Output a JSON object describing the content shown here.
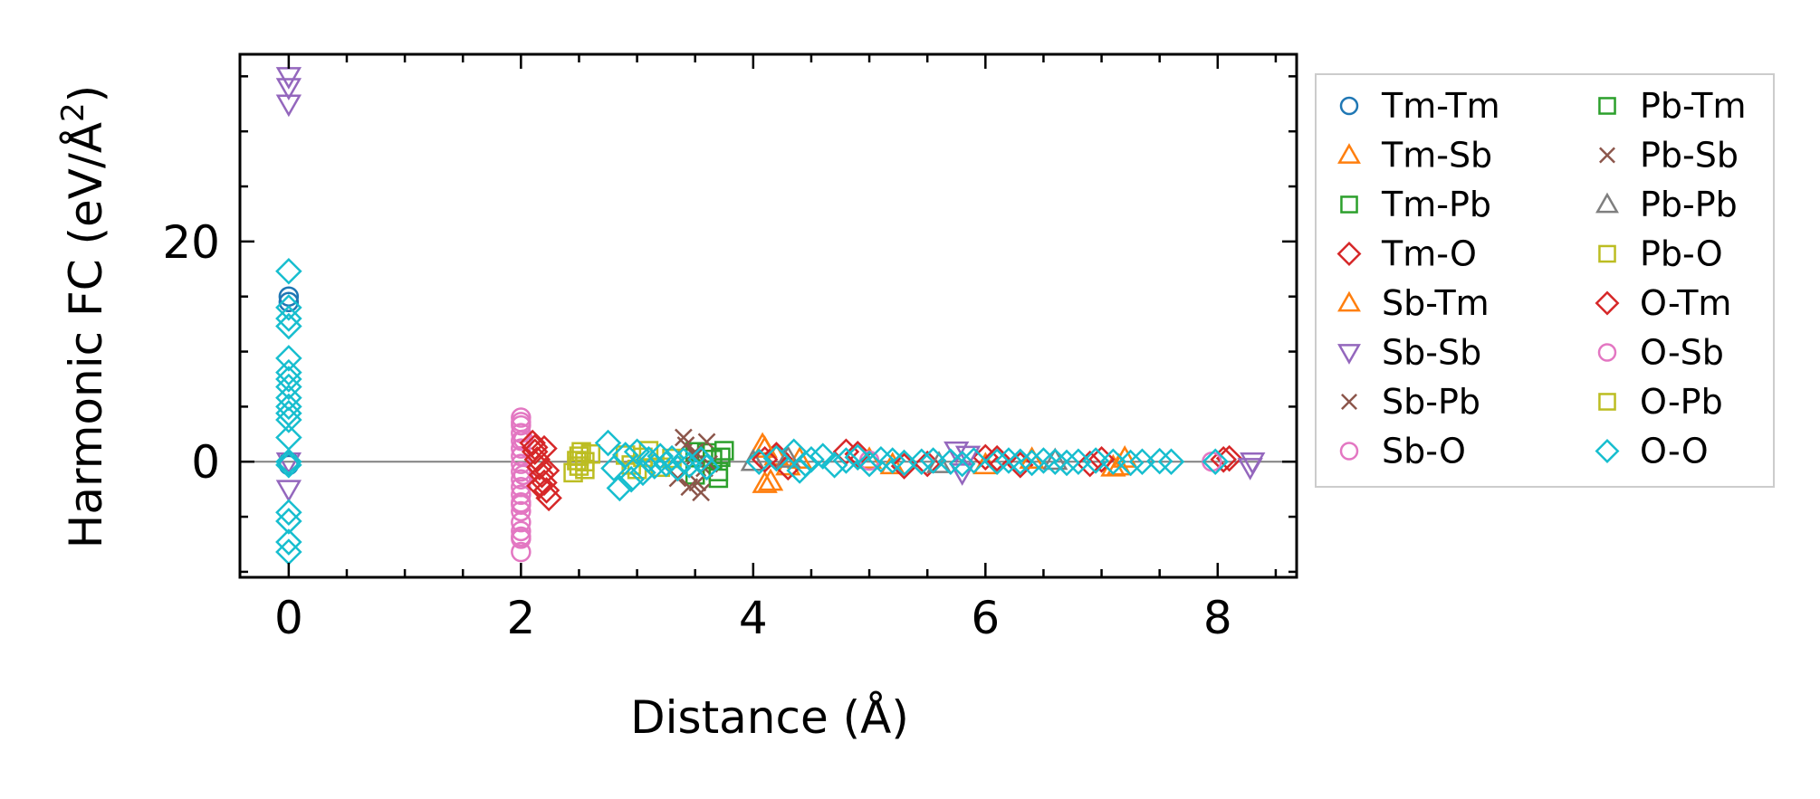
{
  "chart_data": {
    "type": "scatter",
    "xlabel": "Distance (Å)",
    "ylabel": "Harmonic FC (eV/Å²)",
    "ylabel_main": "Harmonic FC (eV/Å",
    "ylabel_sup": "2",
    "ylabel_close": ")",
    "xlim": [
      -0.42,
      8.68
    ],
    "ylim": [
      -10.5,
      37
    ],
    "xticks": [
      0,
      2,
      4,
      6,
      8
    ],
    "xtick_labels": [
      "0",
      "2",
      "4",
      "6",
      "8"
    ],
    "yticks": [
      0,
      20
    ],
    "ytick_labels": [
      "0",
      "20"
    ],
    "x_minor_step": 0.5,
    "y_minor_step": 5,
    "hline": {
      "y": 0,
      "color": "#808080"
    },
    "legend_position": "outside right",
    "series": [
      {
        "name": "Tm-Tm",
        "marker": "circle",
        "color": "#1f77b4",
        "fill": false,
        "points": [
          [
            0,
            15
          ],
          [
            0,
            14.5
          ],
          [
            0,
            0
          ],
          [
            0,
            -0.3
          ]
        ]
      },
      {
        "name": "Tm-Sb",
        "marker": "triangle-up",
        "color": "#ff7f0e",
        "fill": false,
        "points": [
          [
            4.08,
            1.5
          ],
          [
            4.1,
            -2
          ],
          [
            4.2,
            0.5
          ],
          [
            4.3,
            -0.4
          ],
          [
            5.0,
            0.2
          ],
          [
            6.0,
            -0.3
          ],
          [
            7.1,
            -0.5
          ],
          [
            7.2,
            0.3
          ]
        ]
      },
      {
        "name": "Tm-Pb",
        "marker": "square",
        "color": "#2ca02c",
        "fill": false,
        "points": [
          [
            3.5,
            -1.2
          ],
          [
            3.6,
            0.8
          ],
          [
            3.7,
            -1.5
          ],
          [
            3.75,
            1.0
          ],
          [
            3.65,
            0.2
          ]
        ]
      },
      {
        "name": "Tm-O",
        "marker": "diamond",
        "color": "#d62728",
        "fill": false,
        "points": [
          [
            2.2,
            1.2
          ],
          [
            2.22,
            -0.8
          ],
          [
            4.2,
            0.6
          ],
          [
            4.3,
            -0.5
          ],
          [
            4.9,
            0.7
          ],
          [
            5.5,
            -0.2
          ],
          [
            6.0,
            0.4
          ],
          [
            6.3,
            -0.3
          ],
          [
            7.0,
            0.2
          ],
          [
            8.1,
            0.3
          ]
        ]
      },
      {
        "name": "Sb-Tm",
        "marker": "triangle-up",
        "color": "#ff7f0e",
        "fill": false,
        "points": [
          [
            4.1,
            1.2
          ],
          [
            4.15,
            -1.8
          ],
          [
            4.4,
            0.2
          ],
          [
            5.2,
            -0.3
          ],
          [
            6.4,
            0.2
          ],
          [
            7.15,
            -0.4
          ]
        ]
      },
      {
        "name": "Sb-Sb",
        "marker": "triangle-down",
        "color": "#9467bd",
        "fill": false,
        "points": [
          [
            0,
            35
          ],
          [
            0,
            34
          ],
          [
            0,
            32.5
          ],
          [
            0,
            -2.5
          ],
          [
            0,
            0
          ],
          [
            5.75,
            1
          ],
          [
            5.85,
            0.6
          ],
          [
            5.8,
            -1.0
          ],
          [
            8.3,
            0
          ],
          [
            8.28,
            -0.5
          ]
        ]
      },
      {
        "name": "Sb-Pb",
        "marker": "x",
        "color": "#8c564b",
        "fill": false,
        "points": [
          [
            3.4,
            2.2
          ],
          [
            3.45,
            -2.3
          ],
          [
            3.55,
            -2.8
          ],
          [
            3.6,
            1.8
          ],
          [
            3.5,
            0.5
          ],
          [
            3.58,
            -0.6
          ],
          [
            3.35,
            -1.5
          ]
        ]
      },
      {
        "name": "Sb-O",
        "marker": "circle",
        "color": "#e377c2",
        "fill": false,
        "points": [
          [
            2.0,
            4
          ],
          [
            2.0,
            3.3
          ],
          [
            2.0,
            2.6
          ],
          [
            2.0,
            1.9
          ],
          [
            2.0,
            1.2
          ],
          [
            2.0,
            0.5
          ],
          [
            2.0,
            -0.2
          ],
          [
            2.0,
            -0.9
          ],
          [
            2.0,
            -1.6
          ],
          [
            2.0,
            -2.3
          ],
          [
            2.0,
            -3.0
          ],
          [
            2.0,
            -3.7
          ],
          [
            2.0,
            -4.5
          ],
          [
            2.0,
            -5.5
          ],
          [
            2.0,
            -6.3
          ],
          [
            2.0,
            -7.0
          ],
          [
            2.0,
            -8.2
          ],
          [
            2.02,
            2.0
          ],
          [
            2.02,
            -1.2
          ]
        ]
      },
      {
        "name": "Pb-Tm",
        "marker": "square",
        "color": "#2ca02c",
        "fill": false,
        "points": [
          [
            3.5,
            0.9
          ],
          [
            3.7,
            -0.9
          ],
          [
            3.72,
            0.4
          ]
        ]
      },
      {
        "name": "Pb-Sb",
        "marker": "x",
        "color": "#8c564b",
        "fill": false,
        "points": [
          [
            3.42,
            1.5
          ],
          [
            3.52,
            -1.9
          ],
          [
            3.62,
            -0.2
          ],
          [
            3.5,
            0.9
          ]
        ]
      },
      {
        "name": "Pb-Pb",
        "marker": "triangle-up",
        "color": "#7f7f7f",
        "fill": false,
        "points": [
          [
            4.0,
            0
          ],
          [
            4.3,
            0.3
          ],
          [
            5.6,
            -0.2
          ],
          [
            6.6,
            0.1
          ]
        ]
      },
      {
        "name": "Pb-O",
        "marker": "square",
        "color": "#bcbd22",
        "fill": false,
        "points": [
          [
            2.45,
            -1.0
          ],
          [
            2.5,
            0.5
          ],
          [
            2.5,
            -0.4
          ],
          [
            2.55,
            0
          ],
          [
            2.6,
            0.7
          ],
          [
            2.48,
            0.1
          ],
          [
            2.9,
            0.6
          ],
          [
            3.0,
            -0.7
          ],
          [
            3.1,
            1.0
          ],
          [
            3.2,
            -0.5
          ],
          [
            3.3,
            0.3
          ]
        ]
      },
      {
        "name": "O-Tm",
        "marker": "diamond",
        "color": "#d62728",
        "fill": false,
        "points": [
          [
            2.1,
            1.7
          ],
          [
            2.12,
            0.9
          ],
          [
            2.14,
            0.2
          ],
          [
            2.16,
            -0.5
          ],
          [
            2.18,
            -1.2
          ],
          [
            2.2,
            -1.9
          ],
          [
            2.22,
            -2.6
          ],
          [
            2.24,
            -3.3
          ],
          [
            2.12,
            1.3
          ],
          [
            2.16,
            -2.2
          ],
          [
            4.1,
            0.2
          ],
          [
            4.8,
            0.9
          ],
          [
            5.3,
            -0.4
          ],
          [
            6.1,
            0.3
          ],
          [
            6.9,
            -0.2
          ],
          [
            8.05,
            0.2
          ]
        ]
      },
      {
        "name": "O-Sb",
        "marker": "circle",
        "color": "#e377c2",
        "fill": false,
        "points": [
          [
            2.0,
            3.6
          ],
          [
            2.0,
            -3.9
          ],
          [
            2.0,
            -6.8
          ],
          [
            5.0,
            0.1
          ],
          [
            7.95,
            0
          ]
        ]
      },
      {
        "name": "O-Pb",
        "marker": "square",
        "color": "#bcbd22",
        "fill": false,
        "points": [
          [
            2.55,
            -0.7
          ],
          [
            2.52,
            0.9
          ],
          [
            2.95,
            -0.3
          ],
          [
            3.05,
            0.4
          ]
        ]
      },
      {
        "name": "O-O",
        "marker": "diamond",
        "color": "#17becf",
        "fill": false,
        "points": [
          [
            0,
            17.3
          ],
          [
            0,
            14
          ],
          [
            0,
            13
          ],
          [
            0,
            12.3
          ],
          [
            0,
            9.4
          ],
          [
            0,
            8.1
          ],
          [
            0,
            7.5
          ],
          [
            0,
            6.8
          ],
          [
            0,
            5.8
          ],
          [
            0,
            5
          ],
          [
            0,
            4.4
          ],
          [
            0,
            3.8
          ],
          [
            0,
            2.2
          ],
          [
            0,
            0
          ],
          [
            0,
            -0.3
          ],
          [
            0,
            -4.6
          ],
          [
            0,
            -5.4
          ],
          [
            0,
            -7.3
          ],
          [
            0,
            -8.2
          ],
          [
            2.75,
            1.7
          ],
          [
            2.8,
            -0.6
          ],
          [
            2.85,
            -2.4
          ],
          [
            2.9,
            0.6
          ],
          [
            2.95,
            -1.6
          ],
          [
            3.0,
            0.9
          ],
          [
            3.05,
            -1.0
          ],
          [
            3.1,
            0.2
          ],
          [
            3.15,
            -0.4
          ],
          [
            3.2,
            0.5
          ],
          [
            3.25,
            -0.2
          ],
          [
            3.3,
            0.3
          ],
          [
            3.35,
            -0.6
          ],
          [
            3.4,
            0.1
          ],
          [
            3.45,
            -0.3
          ],
          [
            3.55,
            0.2
          ],
          [
            3.6,
            -0.5
          ],
          [
            4.05,
            0
          ],
          [
            4.2,
            0.3
          ],
          [
            4.35,
            0.9
          ],
          [
            4.4,
            -0.8
          ],
          [
            4.45,
            -0.2
          ],
          [
            4.5,
            0.2
          ],
          [
            4.6,
            0.5
          ],
          [
            4.7,
            -0.3
          ],
          [
            4.8,
            0.1
          ],
          [
            4.9,
            0.4
          ],
          [
            5.0,
            -0.2
          ],
          [
            5.1,
            0.2
          ],
          [
            5.2,
            0.1
          ],
          [
            5.3,
            -0.1
          ],
          [
            5.45,
            0
          ],
          [
            5.55,
            0.1
          ],
          [
            5.7,
            0
          ],
          [
            5.8,
            -0.2
          ],
          [
            5.9,
            0.1
          ],
          [
            6.1,
            0
          ],
          [
            6.2,
            0.1
          ],
          [
            6.3,
            0
          ],
          [
            6.4,
            -0.1
          ],
          [
            6.5,
            0.1
          ],
          [
            6.6,
            0
          ],
          [
            6.7,
            -0.1
          ],
          [
            6.8,
            0
          ],
          [
            6.95,
            0.1
          ],
          [
            7.1,
            0
          ],
          [
            7.25,
            -0.1
          ],
          [
            7.35,
            0
          ],
          [
            7.5,
            0.05
          ],
          [
            7.6,
            0
          ],
          [
            7.98,
            0
          ]
        ]
      }
    ]
  }
}
